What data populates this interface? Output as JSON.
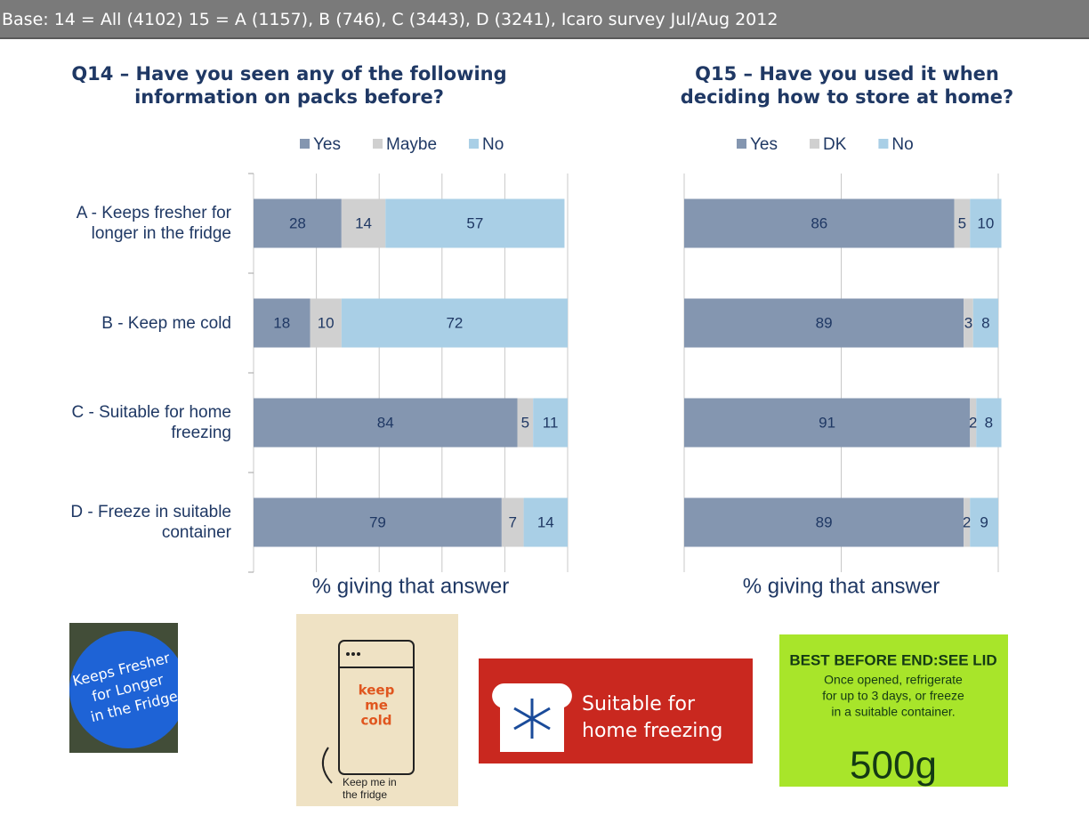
{
  "header": {
    "text": "Base: 14 = All  (4102) 15 = A (1157), B (746), C (3443), D (3241), Icaro survey Jul/Aug 2012"
  },
  "chart_data": [
    {
      "type": "bar",
      "orientation": "horizontal",
      "stacked": true,
      "title": "Q14 – Have you seen any of the following information on packs before?",
      "categories": [
        "A - Keeps fresher for longer in the fridge",
        "B - Keep me cold",
        "C - Suitable for home freezing",
        "D - Freeze in suitable container"
      ],
      "series": [
        {
          "name": "Yes",
          "color": "#8496b0",
          "values": [
            28,
            18,
            84,
            79
          ]
        },
        {
          "name": "Maybe",
          "color": "#d0d0d0",
          "values": [
            14,
            10,
            5,
            7
          ]
        },
        {
          "name": "No",
          "color": "#a9cfe6",
          "values": [
            57,
            72,
            11,
            14
          ]
        }
      ],
      "xlabel": "% giving that answer",
      "xlim": [
        0,
        100
      ],
      "xticks": [
        0,
        20,
        40,
        60,
        80,
        100
      ],
      "grid": true,
      "legend": "top"
    },
    {
      "type": "bar",
      "orientation": "horizontal",
      "stacked": true,
      "title": "Q15 – Have you used it when deciding how to store at home?",
      "categories": [
        null,
        null,
        null,
        null
      ],
      "series": [
        {
          "name": "Yes",
          "color": "#8496b0",
          "values": [
            86,
            89,
            91,
            89
          ]
        },
        {
          "name": "DK",
          "color": "#d0d0d0",
          "values": [
            5,
            3,
            2,
            2
          ]
        },
        {
          "name": "No",
          "color": "#a9cfe6",
          "values": [
            10,
            8,
            8,
            9
          ]
        }
      ],
      "xlabel": "% giving that answer",
      "xlim": [
        0,
        100
      ],
      "xticks": [
        0,
        50,
        100
      ],
      "grid": true,
      "legend": "top"
    }
  ],
  "images": [
    {
      "lines": [
        "Keeps Fresher",
        "for Longer",
        "in the Fridge"
      ]
    },
    {
      "lines": [
        "keep",
        "me",
        "cold",
        "Keep me in",
        "the fridge"
      ]
    },
    {
      "lines": [
        "Suitable for",
        "home freezing"
      ]
    },
    {
      "lines": [
        "BEST BEFORE END:SEE LID",
        "Once opened, refrigerate",
        "for up to 3 days, or freeze",
        "in a suitable container.",
        "500g"
      ]
    }
  ]
}
